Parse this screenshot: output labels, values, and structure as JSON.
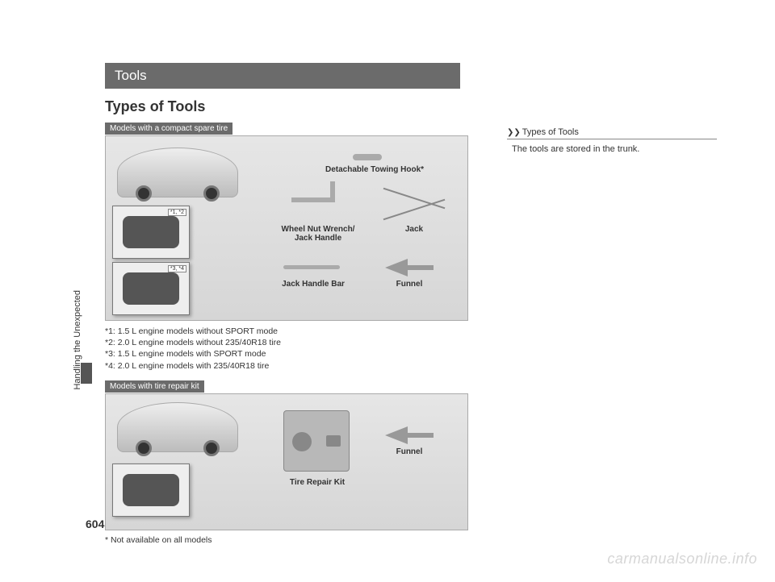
{
  "page": {
    "number": "604",
    "chapter": "Handling the Unexpected"
  },
  "header": {
    "section": "Tools",
    "subtitle": "Types of Tools"
  },
  "diagram1": {
    "model_tag": "Models with a compact spare tire",
    "inset1_tag": "*1, *2",
    "inset2_tag": "*3, *4",
    "labels": {
      "hook": "Detachable Towing Hook*",
      "wrench": "Wheel Nut Wrench/\nJack Handle",
      "jack": "Jack",
      "bar": "Jack Handle Bar",
      "funnel": "Funnel"
    }
  },
  "footnotes": {
    "l1": "*1: 1.5 L engine models without SPORT mode",
    "l2": "*2: 2.0 L engine models without 235/40R18 tire",
    "l3": "*3: 1.5 L engine models with SPORT mode",
    "l4": "*4: 2.0 L engine models with 235/40R18 tire"
  },
  "diagram2": {
    "model_tag": "Models with tire repair kit",
    "labels": {
      "kit": "Tire Repair Kit",
      "funnel": "Funnel"
    }
  },
  "asterisk_note": "* Not available on all models",
  "sidebar": {
    "heading": "Types of Tools",
    "text": "The tools are stored in the trunk."
  },
  "watermark": "carmanualsonline.info"
}
